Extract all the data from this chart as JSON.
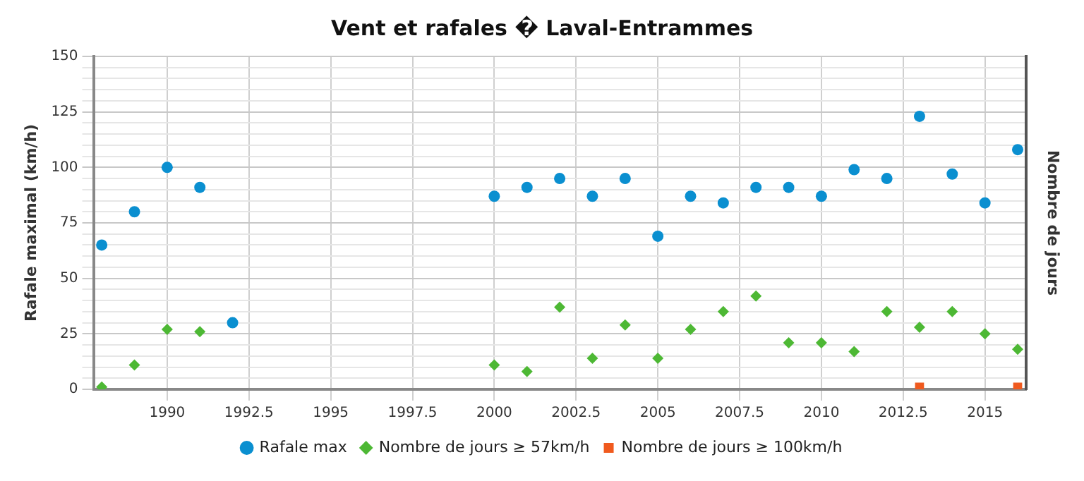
{
  "chart_data": {
    "type": "scatter",
    "title": "Vent et rafales � Laval-Entrammes",
    "ylabel": "Rafale maximal (km/h)",
    "y2label": "Nombre de jours",
    "xlim": [
      1987.75,
      2016.25
    ],
    "xticks": [
      1990,
      1992.5,
      1995,
      1997.5,
      2000,
      2002.5,
      2005,
      2007.5,
      2010,
      2012.5,
      2015
    ],
    "ylim": [
      0,
      150
    ],
    "yticks": [
      0,
      {
        "value": 5,
        "label": null
      },
      {
        "value": 10,
        "label": null
      },
      {
        "value": 15,
        "label": null
      },
      {
        "value": 20,
        "label": null
      },
      25,
      {
        "value": 30,
        "label": null
      },
      {
        "value": 35,
        "label": null
      },
      {
        "value": 40,
        "label": null
      },
      {
        "value": 45,
        "label": null
      },
      50,
      {
        "value": 55,
        "label": null
      },
      {
        "value": 60,
        "label": null
      },
      {
        "value": 65,
        "label": null
      },
      {
        "value": 70,
        "label": null
      },
      75,
      {
        "value": 80,
        "label": null
      },
      {
        "value": 85,
        "label": null
      },
      {
        "value": 90,
        "label": null
      },
      {
        "value": 95,
        "label": null
      },
      100,
      {
        "value": 105,
        "label": null
      },
      {
        "value": 110,
        "label": null
      },
      {
        "value": 115,
        "label": null
      },
      {
        "value": 120,
        "label": null
      },
      125,
      {
        "value": 130,
        "label": null
      },
      {
        "value": 135,
        "label": null
      },
      {
        "value": 140,
        "label": null
      },
      {
        "value": 145,
        "label": null
      },
      150
    ],
    "grid": true,
    "legend": "bottom",
    "series": [
      {
        "name": "Rafale max",
        "color": "#0a8fd0",
        "marker": "circle",
        "x": [
          1988,
          1989,
          1990,
          1991,
          1992,
          2000,
          2001,
          2002,
          2003,
          2004,
          2005,
          2006,
          2007,
          2008,
          2009,
          2010,
          2011,
          2012,
          2013,
          2014,
          2015,
          2016
        ],
        "values": [
          65,
          80,
          100,
          91,
          30,
          87,
          91,
          95,
          87,
          95,
          69,
          87,
          84,
          91,
          91,
          87,
          99,
          95,
          123,
          97,
          84,
          108
        ]
      },
      {
        "name": "Nombre de jours ≥ 57km/h",
        "color": "#4db834",
        "marker": "diamond",
        "x": [
          1988,
          1989,
          1990,
          1991,
          2000,
          2001,
          2002,
          2003,
          2004,
          2005,
          2006,
          2007,
          2008,
          2009,
          2010,
          2011,
          2012,
          2013,
          2014,
          2015,
          2016
        ],
        "values": [
          1,
          11,
          27,
          26,
          11,
          8,
          37,
          14,
          29,
          14,
          27,
          35,
          42,
          21,
          21,
          17,
          35,
          28,
          35,
          25,
          18
        ]
      },
      {
        "name": "Nombre de jours ≥ 100km/h",
        "color": "#f05a1e",
        "marker": "square",
        "x": [
          2013,
          2016
        ],
        "values": [
          1,
          1
        ]
      }
    ]
  }
}
